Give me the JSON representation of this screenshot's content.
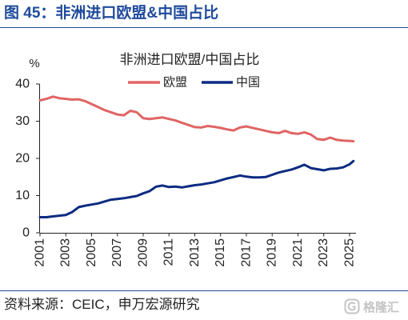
{
  "header": {
    "title": "图 45：非洲进口欧盟&中国占比"
  },
  "footer": {
    "source": "资料来源：CEIC，申万宏源研究"
  },
  "watermark": {
    "text": "格隆汇",
    "icon": "gelonghui-logo-icon"
  },
  "colors": {
    "header_title": "#1f4a9c",
    "rule": "#1f4a9c",
    "axis": "#222222"
  },
  "chart_data": {
    "type": "line",
    "title": "非洲进口欧盟/中国占比",
    "ylabel": "%",
    "xlabel": "",
    "ylim": [
      0,
      40
    ],
    "yticks": [
      0,
      10,
      20,
      30,
      40
    ],
    "xlim": [
      2001,
      2025.5
    ],
    "xticks": [
      2001,
      2003,
      2005,
      2007,
      2009,
      2011,
      2013,
      2015,
      2017,
      2019,
      2021,
      2023,
      2025
    ],
    "grid": false,
    "legend": "top-center",
    "x": [
      2001.0,
      2001.5,
      2002.0,
      2002.5,
      2003.0,
      2003.5,
      2004.0,
      2004.5,
      2005.0,
      2005.5,
      2006.0,
      2006.5,
      2007.0,
      2007.5,
      2008.0,
      2008.5,
      2009.0,
      2009.5,
      2010.0,
      2010.5,
      2011.0,
      2011.5,
      2012.0,
      2012.5,
      2013.0,
      2013.5,
      2014.0,
      2014.5,
      2015.0,
      2015.5,
      2016.0,
      2016.5,
      2017.0,
      2017.5,
      2018.0,
      2018.5,
      2019.0,
      2019.5,
      2020.0,
      2020.5,
      2021.0,
      2021.5,
      2022.0,
      2022.5,
      2023.0,
      2023.5,
      2024.0,
      2024.5,
      2025.0,
      2025.3
    ],
    "series": [
      {
        "name": "欧盟",
        "color": "#e06464",
        "values": [
          35.6,
          36.0,
          36.6,
          36.2,
          36.0,
          35.8,
          35.9,
          35.4,
          34.6,
          33.8,
          33.0,
          32.4,
          31.8,
          31.6,
          32.8,
          32.4,
          30.8,
          30.6,
          30.8,
          31.0,
          30.6,
          30.2,
          29.6,
          29.0,
          28.4,
          28.3,
          28.7,
          28.5,
          28.2,
          27.8,
          27.5,
          28.3,
          28.6,
          28.2,
          27.8,
          27.4,
          27.0,
          26.8,
          27.4,
          26.8,
          26.6,
          27.0,
          26.4,
          25.2,
          25.0,
          25.6,
          25.0,
          24.8,
          24.7,
          24.6
        ]
      },
      {
        "name": "中国",
        "color": "#0c2b82",
        "values": [
          4.2,
          4.2,
          4.4,
          4.6,
          4.8,
          5.6,
          6.9,
          7.3,
          7.6,
          7.9,
          8.4,
          8.9,
          9.1,
          9.3,
          9.6,
          9.9,
          10.6,
          11.2,
          12.4,
          12.7,
          12.3,
          12.4,
          12.2,
          12.5,
          12.8,
          13.0,
          13.3,
          13.6,
          14.1,
          14.6,
          15.0,
          15.4,
          15.1,
          14.9,
          14.9,
          15.0,
          15.6,
          16.2,
          16.6,
          17.0,
          17.6,
          18.3,
          17.4,
          17.1,
          16.8,
          17.2,
          17.3,
          17.6,
          18.4,
          19.3
        ]
      }
    ]
  }
}
